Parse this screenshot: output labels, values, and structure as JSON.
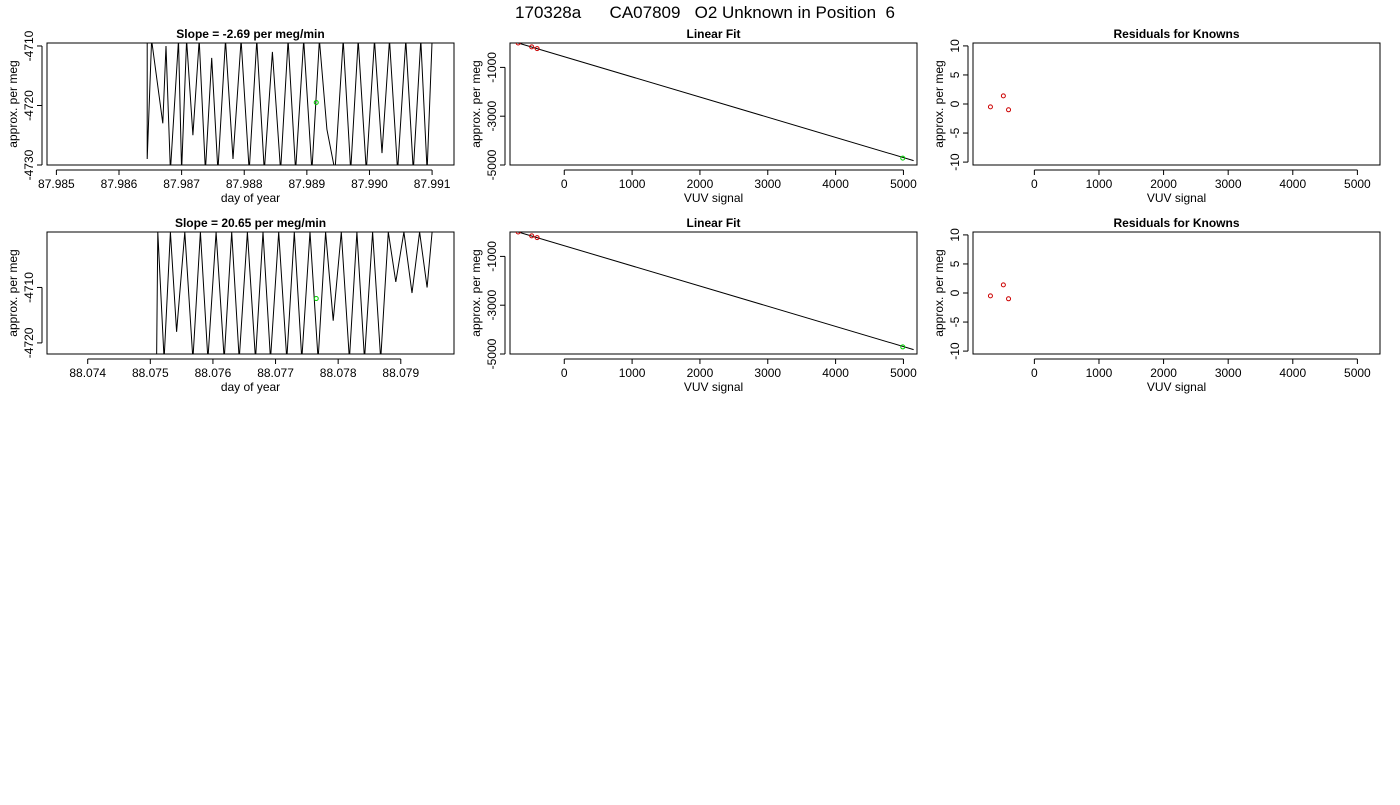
{
  "page_title": "170328a      CA07809   O2 Unknown in Position  6",
  "colors": {
    "trace": "#000000",
    "known_point": "#cc0000",
    "unknown_point": "#00cc00",
    "axis": "#000000"
  },
  "chart_data": [
    {
      "type": "line",
      "title": "Slope =  -2.69  per meg/min",
      "xlabel": "day of year",
      "ylabel": "approx. per meg",
      "xlim": [
        87.98485,
        87.99135
      ],
      "ylim": [
        -4730,
        -4709.5
      ],
      "xticks": [
        87.985,
        87.986,
        87.987,
        87.988,
        87.989,
        87.99,
        87.991
      ],
      "xtick_labels": [
        "87.985",
        "87.986",
        "87.987",
        "87.988",
        "87.989",
        "87.990",
        "87.991"
      ],
      "yticks": [
        -4730,
        -4720,
        -4710
      ],
      "ytick_labels": [
        "-4730",
        "-4720",
        "-4710"
      ],
      "series": [
        {
          "values_x": [
            87.98645,
            87.98645,
            87.98652,
            87.9867,
            87.98675,
            87.98682,
            87.98695,
            87.987,
            87.98708,
            87.98718,
            87.98728,
            87.98738,
            87.98748,
            87.98758,
            87.9877,
            87.98782,
            87.98795,
            87.98808,
            87.9882,
            87.98832,
            87.98845,
            87.98858,
            87.9887,
            87.98882,
            87.98895,
            87.98908,
            87.9892,
            87.98932,
            87.98945,
            87.98958,
            87.9897,
            87.98982,
            87.98995,
            87.99008,
            87.9902,
            87.99032,
            87.99045,
            87.99058,
            87.9907,
            87.99082,
            87.99092,
            87.991
          ],
          "values_y": [
            -4709,
            -4729,
            -4709,
            -4723,
            -4710,
            -4731,
            -4709,
            -4731,
            -4709,
            -4725,
            -4709,
            -4731,
            -4712,
            -4731,
            -4709,
            -4729,
            -4709,
            -4731,
            -4709,
            -4731,
            -4711,
            -4731,
            -4709,
            -4731,
            -4709,
            -4731,
            -4709,
            -4724,
            -4731,
            -4709,
            -4731,
            -4709,
            -4731,
            -4709,
            -4728,
            -4709,
            -4731,
            -4709,
            -4731,
            -4709,
            -4731,
            -4709
          ]
        }
      ],
      "unknown_point": {
        "x": 87.98915,
        "y": -4719.5
      }
    },
    {
      "type": "scatter",
      "title": "Linear Fit",
      "xlabel": "VUV signal",
      "ylabel": "approx. per meg",
      "xlim": [
        -800,
        5200
      ],
      "ylim": [
        -5000,
        0
      ],
      "xticks": [
        0,
        1000,
        2000,
        3000,
        4000,
        5000
      ],
      "xtick_labels": [
        "0",
        "1000",
        "2000",
        "3000",
        "4000",
        "5000"
      ],
      "yticks": [
        -5000,
        -3000,
        -1000
      ],
      "ytick_labels": [
        "-5000",
        "-3000",
        "-1000"
      ],
      "knowns": {
        "x": [
          -680,
          -480,
          -400
        ],
        "y": [
          0,
          -160,
          -230
        ]
      },
      "unknown": {
        "x": 4990,
        "y": -4720
      },
      "fit_line": {
        "x": [
          -680,
          5150
        ],
        "y": [
          0,
          -4820
        ]
      }
    },
    {
      "type": "scatter",
      "title": "Residuals for Knowns",
      "xlabel": "VUV signal",
      "ylabel": "approx. per meg",
      "xlim": [
        -950,
        5350
      ],
      "ylim": [
        -10.5,
        10.5
      ],
      "xticks": [
        0,
        1000,
        2000,
        3000,
        4000,
        5000
      ],
      "xtick_labels": [
        "0",
        "1000",
        "2000",
        "3000",
        "4000",
        "5000"
      ],
      "yticks": [
        -10,
        -5,
        0,
        5,
        10
      ],
      "ytick_labels": [
        "-10",
        "-5",
        "0",
        "5",
        "10"
      ],
      "residuals": {
        "x": [
          -680,
          -480,
          -400
        ],
        "y": [
          -0.5,
          1.4,
          -1.0
        ]
      }
    },
    {
      "type": "line",
      "title": "Slope =  20.65  per meg/min",
      "xlabel": "day of year",
      "ylabel": "approx. per meg",
      "xlim": [
        88.07335,
        88.07985
      ],
      "ylim": [
        -4722,
        -4700
      ],
      "xticks": [
        88.074,
        88.075,
        88.076,
        88.077,
        88.078,
        88.079
      ],
      "xtick_labels": [
        "88.074",
        "88.075",
        "88.076",
        "88.077",
        "88.078",
        "88.079"
      ],
      "yticks": [
        -4720,
        -4710
      ],
      "ytick_labels": [
        "-4720",
        "-4710"
      ],
      "series": [
        {
          "values_x": [
            88.0734,
            88.0751,
            88.07512,
            88.07522,
            88.07532,
            88.07542,
            88.07555,
            88.07568,
            88.0758,
            88.07592,
            88.07605,
            88.07618,
            88.0763,
            88.07642,
            88.07655,
            88.07668,
            88.0768,
            88.07692,
            88.07705,
            88.07718,
            88.0773,
            88.07742,
            88.07755,
            88.07768,
            88.0778,
            88.07792,
            88.07805,
            88.07818,
            88.0783,
            88.07842,
            88.07855,
            88.07868,
            88.0788,
            88.07892,
            88.07905,
            88.07918,
            88.0793,
            88.07942,
            88.0795
          ],
          "values_y": [
            -4723,
            -4723,
            -4700,
            -4723,
            -4700,
            -4718,
            -4700,
            -4723,
            -4700,
            -4723,
            -4700,
            -4723,
            -4700,
            -4723,
            -4700,
            -4723,
            -4700,
            -4723,
            -4700,
            -4723,
            -4700,
            -4723,
            -4700,
            -4723,
            -4700,
            -4716,
            -4700,
            -4723,
            -4700,
            -4723,
            -4700,
            -4723,
            -4700,
            -4709,
            -4700,
            -4711,
            -4700,
            -4710,
            -4700
          ]
        }
      ],
      "unknown_point": {
        "x": 88.07765,
        "y": -4712
      }
    },
    {
      "type": "scatter",
      "title": "Linear Fit",
      "xlabel": "VUV signal",
      "ylabel": "approx. per meg",
      "xlim": [
        -800,
        5200
      ],
      "ylim": [
        -5000,
        0
      ],
      "xticks": [
        0,
        1000,
        2000,
        3000,
        4000,
        5000
      ],
      "xtick_labels": [
        "0",
        "1000",
        "2000",
        "3000",
        "4000",
        "5000"
      ],
      "yticks": [
        -5000,
        -3000,
        -1000
      ],
      "ytick_labels": [
        "-5000",
        "-3000",
        "-1000"
      ],
      "knowns": {
        "x": [
          -680,
          -480,
          -400
        ],
        "y": [
          0,
          -160,
          -230
        ]
      },
      "unknown": {
        "x": 4990,
        "y": -4710
      },
      "fit_line": {
        "x": [
          -680,
          5150
        ],
        "y": [
          0,
          -4820
        ]
      }
    },
    {
      "type": "scatter",
      "title": "Residuals for Knowns",
      "xlabel": "VUV signal",
      "ylabel": "approx. per meg",
      "xlim": [
        -950,
        5350
      ],
      "ylim": [
        -10.5,
        10.5
      ],
      "xticks": [
        0,
        1000,
        2000,
        3000,
        4000,
        5000
      ],
      "xtick_labels": [
        "0",
        "1000",
        "2000",
        "3000",
        "4000",
        "5000"
      ],
      "yticks": [
        -10,
        -5,
        0,
        5,
        10
      ],
      "ytick_labels": [
        "-10",
        "-5",
        "0",
        "5",
        "10"
      ],
      "residuals": {
        "x": [
          -680,
          -480,
          -400
        ],
        "y": [
          -0.5,
          1.4,
          -1.0
        ]
      }
    }
  ]
}
